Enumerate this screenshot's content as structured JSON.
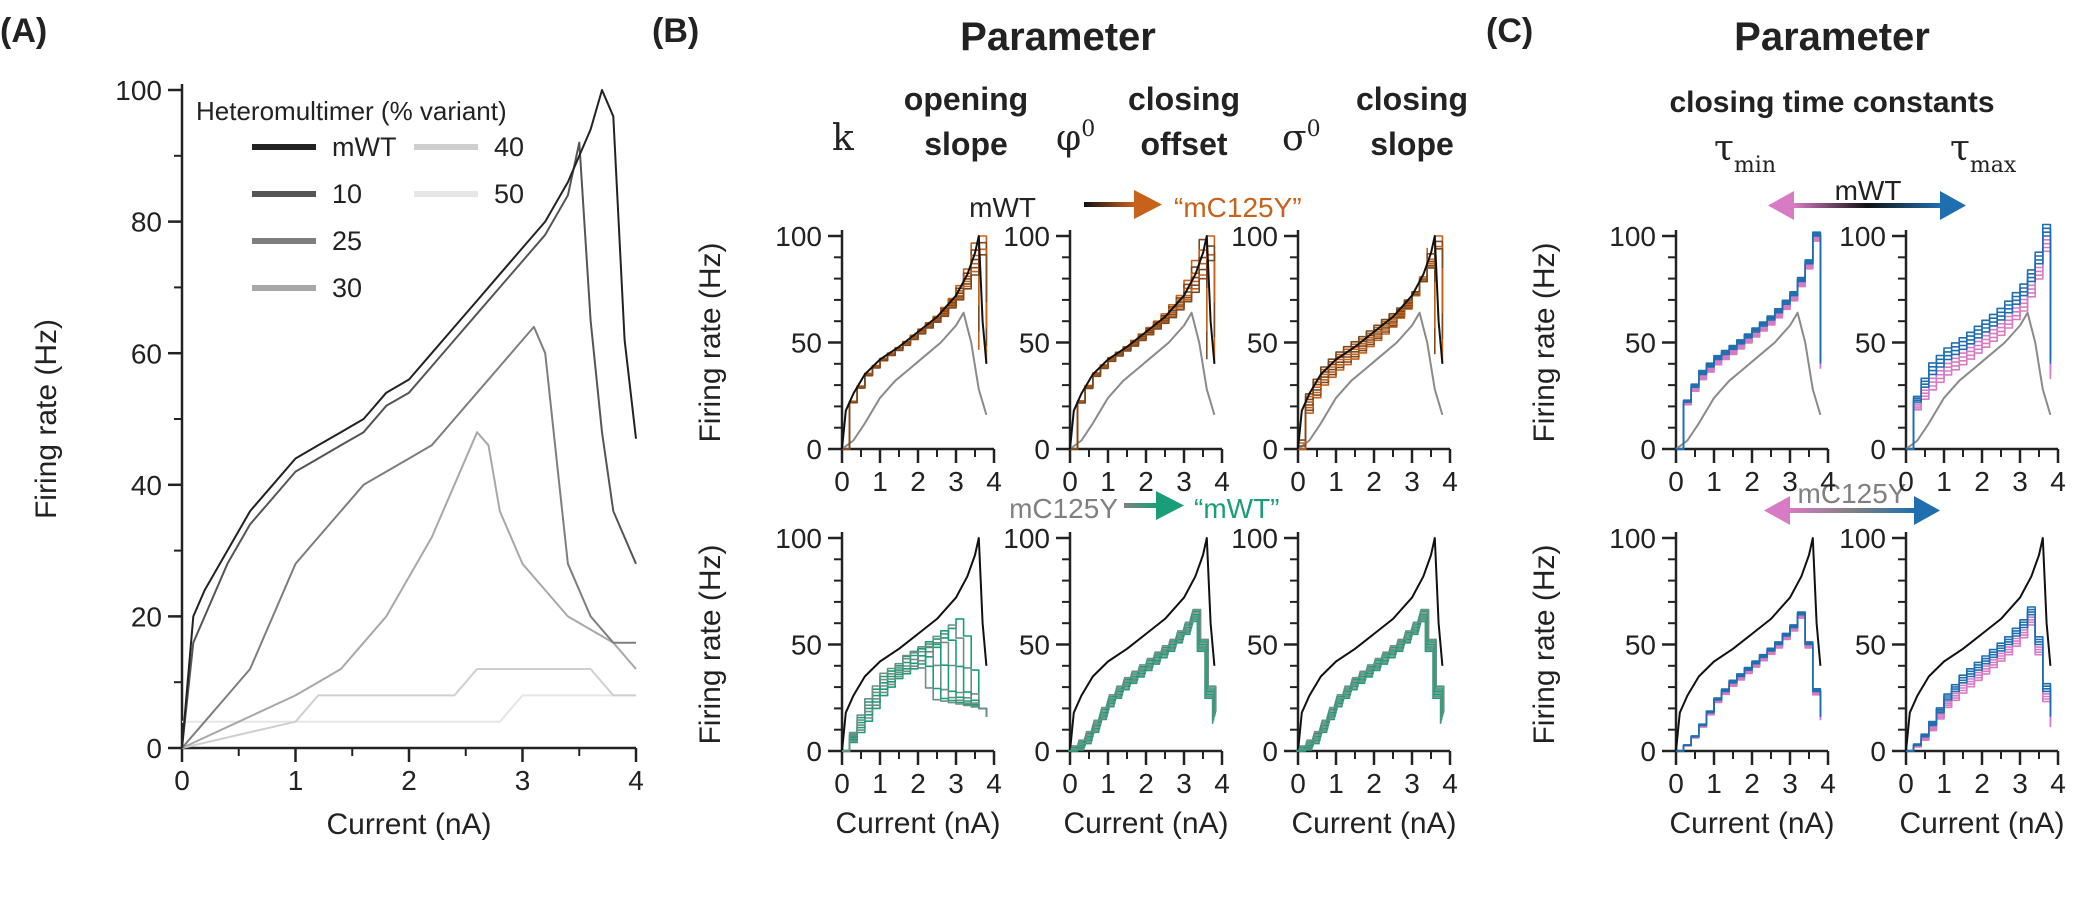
{
  "panel_labels": [
    "(A)",
    "(B)",
    "(C)"
  ],
  "headers": {
    "b": "Parameter",
    "c": "Parameter",
    "c_sub": "closing time constants"
  },
  "param_labels": {
    "k_sym": "k",
    "k_1": "opening",
    "k_2": "slope",
    "phi_sym": "φ",
    "phi_sup": "0",
    "phi_1": "closing",
    "phi_2": "offset",
    "sigma_sym": "σ",
    "sigma_sup": "0",
    "sigma_1": "closing",
    "sigma_2": "slope",
    "tau_sym": "τ",
    "tau_min_sub": "min",
    "tau_max_sub": "max"
  },
  "arrows": {
    "b_top_from": "mWT",
    "b_top_to": "“mC125Y”",
    "b_bot_from": "mC125Y",
    "b_bot_to": "“mWT”",
    "c_top": "mWT",
    "c_bot": "mC125Y"
  },
  "axis_labels": {
    "x": "Current (nA)",
    "y": "Firing rate (Hz)"
  },
  "colors": {
    "mWT": "#111111",
    "mC125Y": "#808080",
    "orange": "#c8621a",
    "teal": "#1a9e77",
    "pink": "#d77bc4",
    "blue": "#1f6fb0"
  },
  "chart_data": [
    {
      "id": "A",
      "type": "line",
      "xlabel": "Current (nA)",
      "ylabel": "Firing rate (Hz)",
      "xlim": [
        0,
        4
      ],
      "ylim": [
        0,
        100
      ],
      "xticks": [
        0,
        1,
        2,
        3,
        4
      ],
      "yticks": [
        0,
        20,
        40,
        60,
        80,
        100
      ],
      "legend_title": "Heteromultimer (% variant)",
      "legend_position": "top-left",
      "series": [
        {
          "name": "mWT",
          "color": "#222222",
          "x": [
            0,
            0.1,
            0.2,
            0.4,
            0.6,
            0.8,
            1.0,
            1.2,
            1.4,
            1.6,
            1.8,
            2.0,
            2.2,
            2.4,
            2.6,
            2.8,
            3.0,
            3.2,
            3.4,
            3.6,
            3.7,
            3.8,
            3.9,
            4.0
          ],
          "y": [
            0,
            20,
            24,
            30,
            36,
            40,
            44,
            46,
            48,
            50,
            54,
            56,
            60,
            64,
            68,
            72,
            76,
            80,
            86,
            94,
            100,
            96,
            62,
            47
          ]
        },
        {
          "name": "10",
          "color": "#555555",
          "x": [
            0,
            0.1,
            0.2,
            0.4,
            0.6,
            0.8,
            1.0,
            1.2,
            1.4,
            1.6,
            1.8,
            2.0,
            2.2,
            2.4,
            2.6,
            2.8,
            3.0,
            3.2,
            3.4,
            3.5,
            3.6,
            3.7,
            3.8,
            3.9,
            4.0
          ],
          "y": [
            0,
            16,
            20,
            28,
            34,
            38,
            42,
            44,
            46,
            48,
            52,
            54,
            58,
            62,
            66,
            70,
            74,
            78,
            84,
            92,
            65,
            48,
            36,
            32,
            28
          ]
        },
        {
          "name": "25",
          "color": "#7e7e7e",
          "x": [
            0,
            0.2,
            0.4,
            0.6,
            0.8,
            1.0,
            1.2,
            1.4,
            1.6,
            1.8,
            2.0,
            2.2,
            2.4,
            2.6,
            2.8,
            3.0,
            3.1,
            3.2,
            3.3,
            3.4,
            3.6,
            3.8,
            4.0
          ],
          "y": [
            0,
            4,
            8,
            12,
            20,
            28,
            32,
            36,
            40,
            42,
            44,
            46,
            50,
            54,
            58,
            62,
            64,
            60,
            44,
            28,
            20,
            16,
            16
          ]
        },
        {
          "name": "30",
          "color": "#a8a8a8",
          "x": [
            0,
            0.5,
            1.0,
            1.2,
            1.4,
            1.6,
            1.8,
            2.0,
            2.2,
            2.4,
            2.6,
            2.7,
            2.8,
            3.0,
            3.2,
            3.4,
            3.6,
            3.8,
            4.0
          ],
          "y": [
            0,
            4,
            8,
            10,
            12,
            16,
            20,
            26,
            32,
            40,
            48,
            46,
            36,
            28,
            24,
            20,
            18,
            16,
            12
          ]
        },
        {
          "name": "40",
          "color": "#cfcfcf",
          "x": [
            0,
            1.0,
            1.2,
            2.4,
            2.6,
            3.6,
            3.8,
            4.0
          ],
          "y": [
            0,
            4,
            8,
            8,
            12,
            12,
            8,
            8
          ]
        },
        {
          "name": "50",
          "color": "#e6e6e6",
          "x": [
            0,
            2.8,
            3.0,
            4.0
          ],
          "y": [
            4,
            4,
            8,
            8
          ]
        }
      ]
    },
    {
      "id": "B",
      "type": "line",
      "xlabel": "Current (nA)",
      "ylabel": "Firing rate (Hz)",
      "xlim": [
        0,
        4
      ],
      "ylim": [
        0,
        100
      ],
      "xticks": [
        0,
        1,
        2,
        3,
        4
      ],
      "yticks": [
        0,
        50,
        100
      ],
      "references": {
        "mWT": {
          "x": [
            0,
            0.1,
            0.3,
            0.6,
            1.0,
            1.5,
            2.0,
            2.5,
            3.0,
            3.3,
            3.5,
            3.6,
            3.7,
            3.8
          ],
          "y": [
            0,
            18,
            26,
            35,
            42,
            48,
            55,
            62,
            72,
            82,
            92,
            100,
            60,
            40
          ]
        },
        "mC125Y": {
          "x": [
            0,
            0.3,
            0.6,
            1.0,
            1.4,
            1.8,
            2.2,
            2.6,
            3.0,
            3.2,
            3.4,
            3.6,
            3.8
          ],
          "y": [
            0,
            4,
            12,
            24,
            32,
            38,
            44,
            50,
            58,
            64,
            50,
            28,
            16
          ]
        }
      },
      "subplots": [
        {
          "row": "top",
          "param": "k",
          "from": "mWT",
          "to": "“mC125Y”",
          "color": "#c8621a",
          "variant_count": 8
        },
        {
          "row": "top",
          "param": "φ0",
          "from": "mWT",
          "to": "“mC125Y”",
          "color": "#c8621a",
          "variant_count": 8
        },
        {
          "row": "top",
          "param": "σ0",
          "from": "mWT",
          "to": "“mC125Y”",
          "color": "#c8621a",
          "variant_count": 8
        },
        {
          "row": "bottom",
          "param": "k",
          "from": "mC125Y",
          "to": "“mWT”",
          "color": "#1a9e77",
          "variant_count": 8
        },
        {
          "row": "bottom",
          "param": "φ0",
          "from": "mC125Y",
          "to": "“mWT”",
          "color": "#1a9e77",
          "variant_count": 8
        },
        {
          "row": "bottom",
          "param": "σ0",
          "from": "mC125Y",
          "to": "“mWT”",
          "color": "#1a9e77",
          "variant_count": 8
        }
      ]
    },
    {
      "id": "C",
      "type": "line",
      "xlabel": "Current (nA)",
      "ylabel": "Firing rate (Hz)",
      "xlim": [
        0,
        4
      ],
      "ylim": [
        0,
        100
      ],
      "xticks": [
        0,
        1,
        2,
        3,
        4
      ],
      "yticks": [
        0,
        50,
        100
      ],
      "subplots": [
        {
          "row": "top",
          "param": "τmin",
          "center": "mWT",
          "colors": [
            "#d77bc4",
            "#1f6fb0"
          ]
        },
        {
          "row": "top",
          "param": "τmax",
          "center": "mWT",
          "colors": [
            "#d77bc4",
            "#1f6fb0"
          ]
        },
        {
          "row": "bottom",
          "param": "τmin",
          "center": "mC125Y",
          "colors": [
            "#d77bc4",
            "#1f6fb0"
          ]
        },
        {
          "row": "bottom",
          "param": "τmax",
          "center": "mC125Y",
          "colors": [
            "#d77bc4",
            "#1f6fb0"
          ]
        }
      ]
    }
  ]
}
